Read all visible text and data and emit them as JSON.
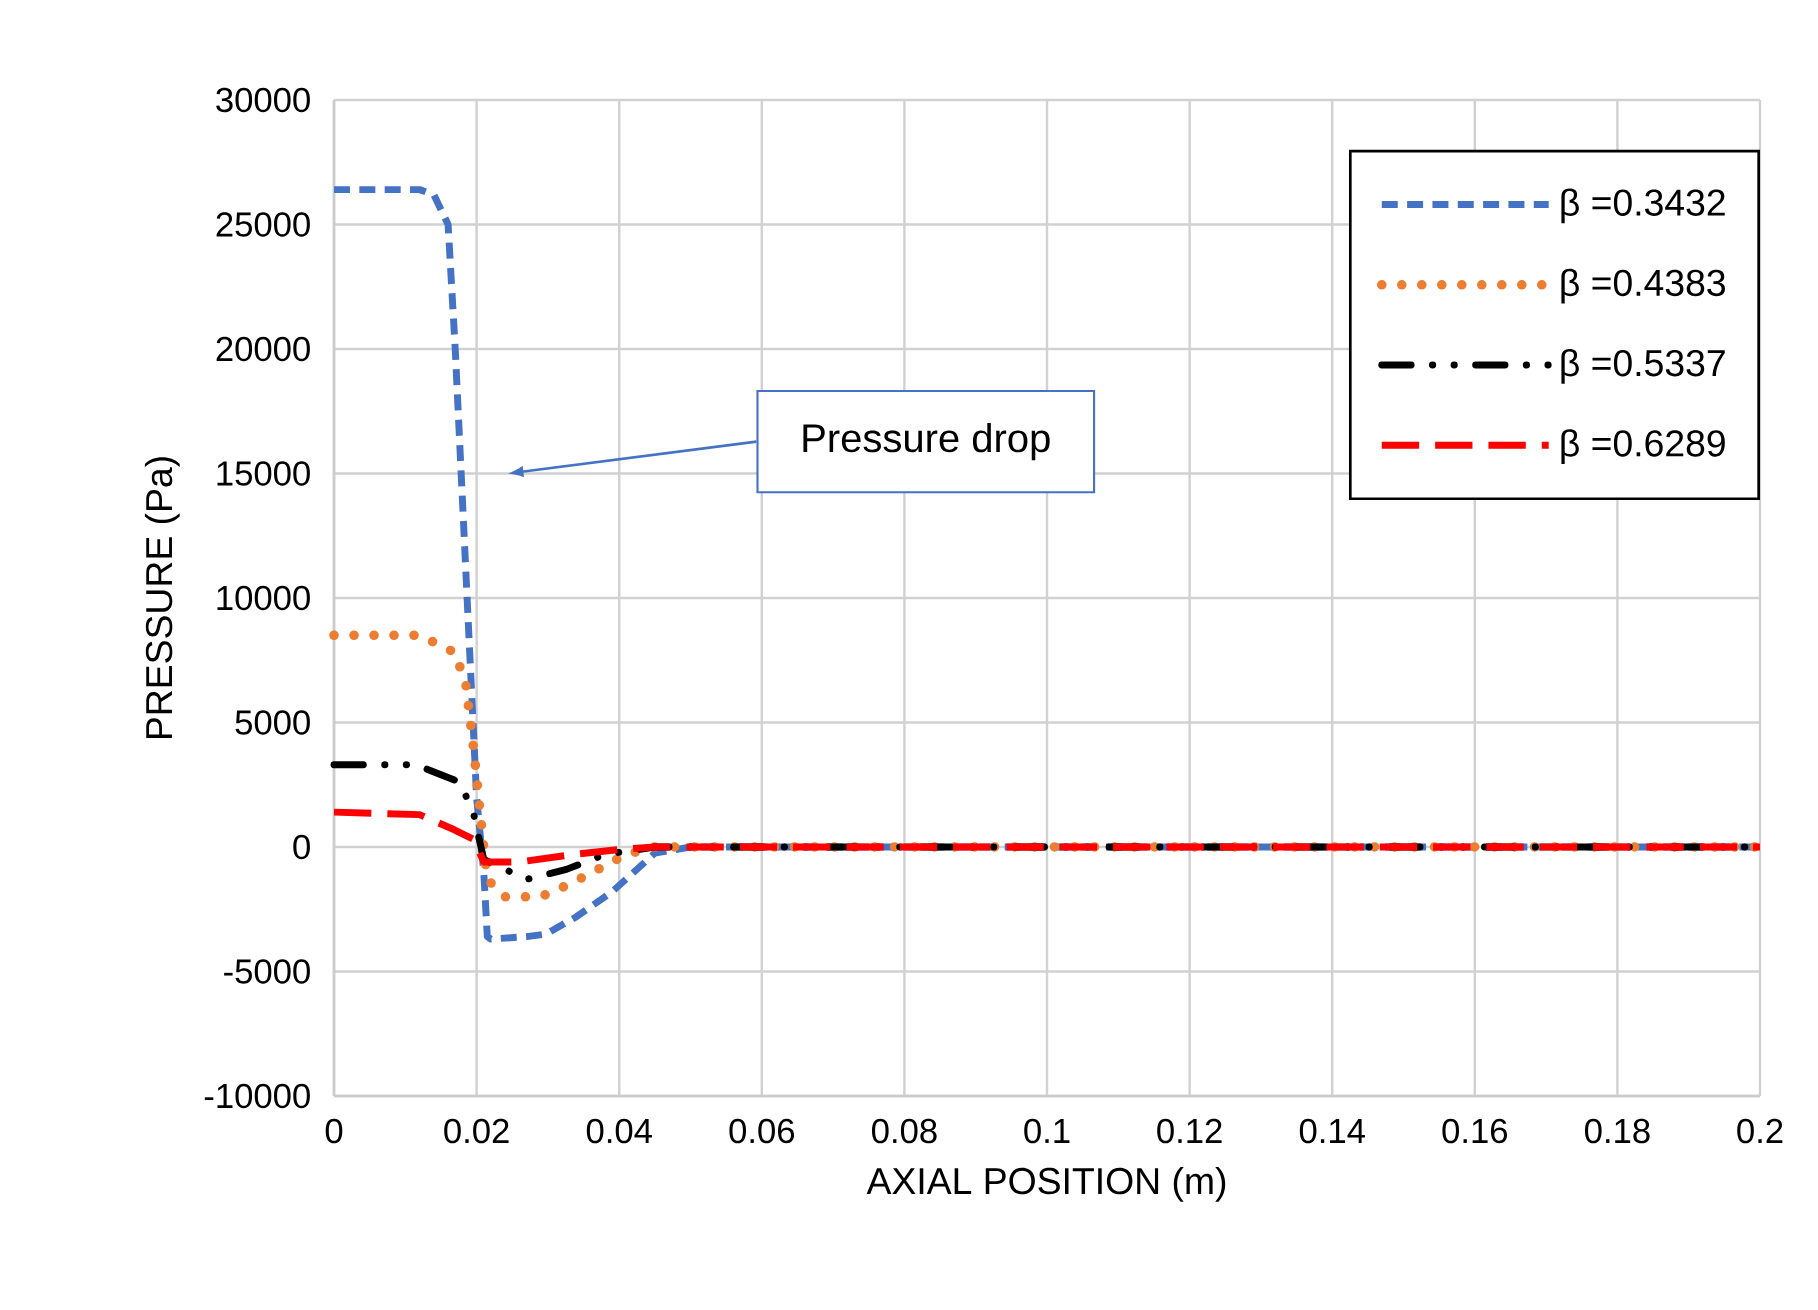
{
  "chart_data": {
    "type": "line",
    "xlabel": "AXIAL POSITION (m)",
    "ylabel": "PRESSURE (Pa)",
    "xlim": [
      0,
      0.2
    ],
    "ylim": [
      -10000,
      30000
    ],
    "xticks": [
      0,
      0.02,
      0.04,
      0.06,
      0.08,
      0.1,
      0.12,
      0.14,
      0.16,
      0.18,
      0.2
    ],
    "yticks": [
      -10000,
      -5000,
      0,
      5000,
      10000,
      15000,
      20000,
      25000,
      30000
    ],
    "grid": true,
    "legend": "top right",
    "marker": "none",
    "annotations": [
      "Pressure drop"
    ],
    "series": [
      {
        "name": "β =0.3432",
        "color": "#4472c4",
        "line_style": "dashed",
        "x": [
          0,
          0.012,
          0.014,
          0.016,
          0.017,
          0.018,
          0.019,
          0.02,
          0.021,
          0.0215,
          0.022,
          0.027,
          0.0297,
          0.034,
          0.039,
          0.045,
          0.05,
          0.1,
          0.15,
          0.2
        ],
        "values": [
          26400,
          26400,
          26200,
          25000,
          20000,
          14000,
          8000,
          2000,
          -1000,
          -3600,
          -3700,
          -3600,
          -3500,
          -2800,
          -1800,
          -250,
          0,
          0,
          0,
          0
        ]
      },
      {
        "name": "β =0.4383",
        "color": "#ed7d31",
        "line_style": "dotted",
        "x": [
          0,
          0.012,
          0.017,
          0.0185,
          0.0196,
          0.021,
          0.0215,
          0.024,
          0.029,
          0.033,
          0.037,
          0.041,
          0.045,
          0.1,
          0.15,
          0.2
        ],
        "values": [
          8500,
          8500,
          7800,
          6500,
          3900,
          0,
          -1300,
          -2000,
          -2000,
          -1500,
          -900,
          -300,
          0,
          0,
          0,
          0
        ]
      },
      {
        "name": "β =0.5337",
        "color": "#000000",
        "line_style": "dashdotted",
        "x": [
          0,
          0.0115,
          0.0177,
          0.0196,
          0.021,
          0.027,
          0.0326,
          0.038,
          0.045,
          0.1,
          0.15,
          0.2
        ],
        "values": [
          3300,
          3300,
          2600,
          1300,
          -500,
          -1300,
          -900,
          -300,
          0,
          0,
          0,
          0
        ]
      },
      {
        "name": "β =0.6289",
        "color": "#ff0000",
        "line_style": "longdashed",
        "x": [
          0,
          0.012,
          0.0168,
          0.0196,
          0.021,
          0.026,
          0.0336,
          0.04,
          0.045,
          0.1,
          0.15,
          0.2
        ],
        "values": [
          1400,
          1300,
          700,
          300,
          -600,
          -600,
          -300,
          -100,
          0,
          0,
          0,
          0
        ]
      }
    ]
  }
}
